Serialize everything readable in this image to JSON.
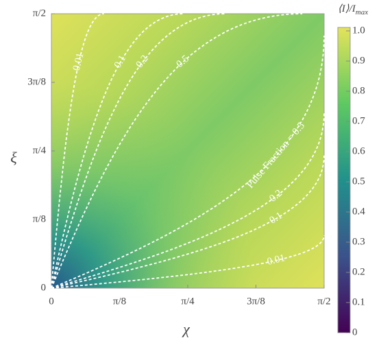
{
  "chart_data": {
    "type": "contour",
    "x_label": "χ",
    "y_label": "ξ",
    "xlim": [
      0,
      1.5708
    ],
    "ylim": [
      0,
      1.5708
    ],
    "xticks": [
      0,
      {
        "value": 0.3927,
        "label": "π/8"
      },
      {
        "value": 0.7854,
        "label": "π/4"
      },
      {
        "value": 1.1781,
        "label": "3π/8"
      },
      {
        "value": 1.5708,
        "label": "π/2"
      }
    ],
    "yticks": [
      0,
      {
        "value": 0.3927,
        "label": "π/8"
      },
      {
        "value": 0.7854,
        "label": "π/4"
      },
      {
        "value": 1.1781,
        "label": "3π/8"
      },
      {
        "value": 1.5708,
        "label": "π/2"
      }
    ],
    "contour_levels_upper": [
      0.01,
      0.1,
      0.2,
      0.5
    ],
    "contour_levels_lower": [
      0.5,
      0.2,
      0.1,
      0.01
    ],
    "contour_labels_lower": [
      "Pulse Fraction = 0.5",
      "0.2",
      "0.1",
      "0.01"
    ],
    "line_color": "#ffffff",
    "colorbar": {
      "title": "⟨I⟩/I",
      "title_sub": "max",
      "lim": [
        0,
        1
      ],
      "ticks": [
        0,
        0.1,
        0.2,
        0.3,
        0.4,
        0.5,
        0.6,
        0.7,
        0.8,
        0.9,
        {
          "value": 1,
          "label": "1.0"
        }
      ]
    }
  }
}
